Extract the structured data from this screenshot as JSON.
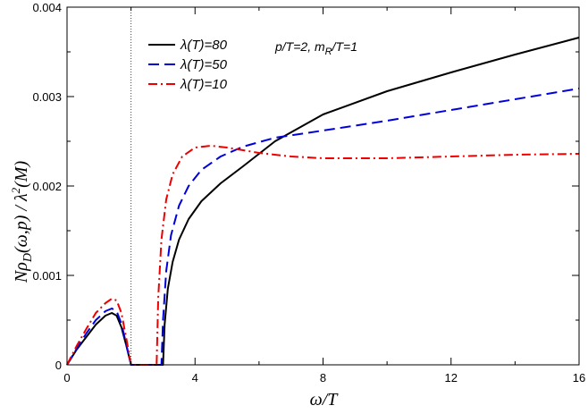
{
  "chart_data": {
    "type": "line",
    "xlabel": "ω/T",
    "ylabel": "Nρ_D(ω,p) / λ²(M)",
    "xlim": [
      0,
      16
    ],
    "ylim": [
      0,
      0.004
    ],
    "xticks": [
      0,
      4,
      8,
      12,
      16
    ],
    "xtick_labels": [
      "0",
      "4",
      "8",
      "12",
      "16"
    ],
    "yticks": [
      0,
      0.001,
      0.002,
      0.003,
      0.004
    ],
    "ytick_labels": [
      "0",
      "0.001",
      "0.002",
      "0.003",
      "0.004"
    ],
    "vline_x": 2,
    "annotation": "p/T=2, m_R/T=1",
    "legend_position": "top-left",
    "series": [
      {
        "name": "λ(T)=80",
        "color": "#000000",
        "dash": "solid",
        "points": [
          [
            0,
            0
          ],
          [
            0.3,
            0.00017
          ],
          [
            0.6,
            0.00031
          ],
          [
            0.9,
            0.00045
          ],
          [
            1.2,
            0.00055
          ],
          [
            1.4,
            0.00058
          ],
          [
            1.55,
            0.00055
          ],
          [
            1.7,
            0.00042
          ],
          [
            1.85,
            0.00022
          ],
          [
            2.0,
            0
          ],
          [
            3.0,
            0
          ],
          [
            3.05,
            0.00045
          ],
          [
            3.15,
            0.00085
          ],
          [
            3.3,
            0.00115
          ],
          [
            3.5,
            0.0014
          ],
          [
            3.8,
            0.00163
          ],
          [
            4.2,
            0.00183
          ],
          [
            4.8,
            0.00203
          ],
          [
            5.5,
            0.00222
          ],
          [
            6.5,
            0.0025
          ],
          [
            8,
            0.0028
          ],
          [
            10,
            0.00306
          ],
          [
            12,
            0.00327
          ],
          [
            14,
            0.00347
          ],
          [
            16,
            0.00366
          ]
        ]
      },
      {
        "name": "λ(T)=50",
        "color": "#0000dd",
        "dash": "dashed",
        "points": [
          [
            0,
            0
          ],
          [
            0.3,
            0.00018
          ],
          [
            0.6,
            0.00035
          ],
          [
            0.9,
            0.0005
          ],
          [
            1.2,
            0.0006
          ],
          [
            1.4,
            0.00063
          ],
          [
            1.55,
            0.0006
          ],
          [
            1.7,
            0.00046
          ],
          [
            1.85,
            0.00023
          ],
          [
            2.0,
            0
          ],
          [
            2.95,
            0
          ],
          [
            3.0,
            0.0005
          ],
          [
            3.1,
            0.00105
          ],
          [
            3.25,
            0.00145
          ],
          [
            3.5,
            0.00178
          ],
          [
            3.8,
            0.002
          ],
          [
            4.2,
            0.00218
          ],
          [
            4.8,
            0.00233
          ],
          [
            5.5,
            0.00244
          ],
          [
            6.5,
            0.00254
          ],
          [
            8,
            0.00262
          ],
          [
            10,
            0.00273
          ],
          [
            12,
            0.00285
          ],
          [
            14,
            0.00297
          ],
          [
            16,
            0.00309
          ]
        ]
      },
      {
        "name": "λ(T)=10",
        "color": "#ee0000",
        "dash": "dashdot",
        "points": [
          [
            0,
            0
          ],
          [
            0.3,
            0.00021
          ],
          [
            0.6,
            0.0004
          ],
          [
            0.9,
            0.00058
          ],
          [
            1.2,
            0.00069
          ],
          [
            1.4,
            0.00074
          ],
          [
            1.55,
            0.00072
          ],
          [
            1.7,
            0.00058
          ],
          [
            1.85,
            0.0003
          ],
          [
            2.0,
            0
          ],
          [
            2.8,
            0
          ],
          [
            2.85,
            0.00075
          ],
          [
            2.95,
            0.0014
          ],
          [
            3.1,
            0.00185
          ],
          [
            3.3,
            0.00213
          ],
          [
            3.6,
            0.00233
          ],
          [
            4.0,
            0.00243
          ],
          [
            4.5,
            0.00245
          ],
          [
            5.0,
            0.00243
          ],
          [
            6,
            0.00237
          ],
          [
            7,
            0.00233
          ],
          [
            8,
            0.00231
          ],
          [
            10,
            0.00231
          ],
          [
            12,
            0.00233
          ],
          [
            14,
            0.00235
          ],
          [
            16,
            0.00236
          ]
        ]
      }
    ]
  }
}
